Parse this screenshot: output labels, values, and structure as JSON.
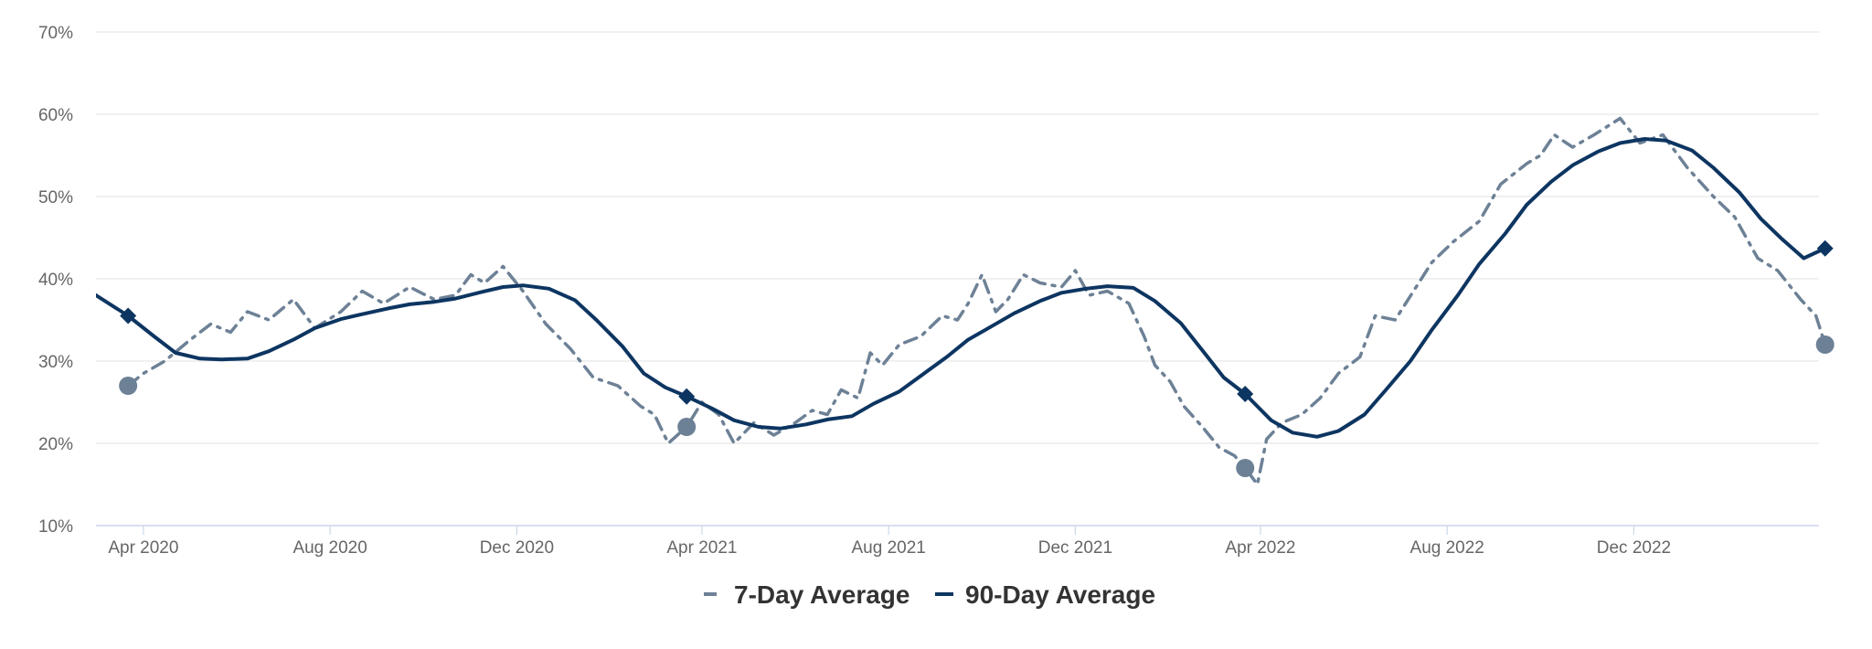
{
  "chart_data": {
    "type": "line",
    "x_axis": {
      "type": "date",
      "min": "2020-03-01",
      "max": "2023-04-01",
      "ticks": [
        {
          "date": "2020-04-01",
          "label": "Apr 2020"
        },
        {
          "date": "2020-08-01",
          "label": "Aug 2020"
        },
        {
          "date": "2020-12-01",
          "label": "Dec 2020"
        },
        {
          "date": "2021-04-01",
          "label": "Apr 2021"
        },
        {
          "date": "2021-08-01",
          "label": "Aug 2021"
        },
        {
          "date": "2021-12-01",
          "label": "Dec 2021"
        },
        {
          "date": "2022-04-01",
          "label": "Apr 2022"
        },
        {
          "date": "2022-08-01",
          "label": "Aug 2022"
        },
        {
          "date": "2022-12-01",
          "label": "Dec 2022"
        }
      ]
    },
    "y_axis": {
      "min": 10,
      "max": 70,
      "ticks": [
        {
          "value": 10,
          "label": "10%"
        },
        {
          "value": 20,
          "label": "20%"
        },
        {
          "value": 30,
          "label": "30%"
        },
        {
          "value": 40,
          "label": "40%"
        },
        {
          "value": 50,
          "label": "50%"
        },
        {
          "value": 60,
          "label": "60%"
        },
        {
          "value": 70,
          "label": "70%"
        }
      ]
    },
    "grid": true,
    "legend": {
      "position": "bottom-center"
    },
    "series": [
      {
        "name": "7-Day Average",
        "color": "#6d8196",
        "style": "dashed",
        "marker": "circle",
        "points": [
          {
            "x": "2020-03-22",
            "y": 27.0,
            "marker": true
          },
          {
            "x": "2020-04-01",
            "y": 28.5
          },
          {
            "x": "2020-04-15",
            "y": 30.0
          },
          {
            "x": "2020-05-01",
            "y": 32.5
          },
          {
            "x": "2020-05-15",
            "y": 34.5
          },
          {
            "x": "2020-05-28",
            "y": 33.5
          },
          {
            "x": "2020-06-08",
            "y": 36.0
          },
          {
            "x": "2020-06-22",
            "y": 35.0
          },
          {
            "x": "2020-07-08",
            "y": 37.5
          },
          {
            "x": "2020-07-22",
            "y": 34.0
          },
          {
            "x": "2020-08-08",
            "y": 36.0
          },
          {
            "x": "2020-08-22",
            "y": 38.5
          },
          {
            "x": "2020-09-05",
            "y": 37.0
          },
          {
            "x": "2020-09-22",
            "y": 39.0
          },
          {
            "x": "2020-10-08",
            "y": 37.5
          },
          {
            "x": "2020-10-22",
            "y": 38.0
          },
          {
            "x": "2020-11-01",
            "y": 40.5
          },
          {
            "x": "2020-11-10",
            "y": 39.5
          },
          {
            "x": "2020-11-22",
            "y": 41.5
          },
          {
            "x": "2020-12-05",
            "y": 38.5
          },
          {
            "x": "2020-12-20",
            "y": 34.5
          },
          {
            "x": "2021-01-05",
            "y": 31.5
          },
          {
            "x": "2021-01-20",
            "y": 28.0
          },
          {
            "x": "2021-02-05",
            "y": 27.0
          },
          {
            "x": "2021-02-20",
            "y": 24.5
          },
          {
            "x": "2021-03-01",
            "y": 23.5
          },
          {
            "x": "2021-03-10",
            "y": 20.0
          },
          {
            "x": "2021-03-22",
            "y": 22.0,
            "marker": true
          },
          {
            "x": "2021-04-01",
            "y": 25.0
          },
          {
            "x": "2021-04-12",
            "y": 23.5
          },
          {
            "x": "2021-04-22",
            "y": 20.0
          },
          {
            "x": "2021-05-05",
            "y": 22.5
          },
          {
            "x": "2021-05-18",
            "y": 21.0
          },
          {
            "x": "2021-06-01",
            "y": 22.5
          },
          {
            "x": "2021-06-12",
            "y": 24.0
          },
          {
            "x": "2021-06-22",
            "y": 23.5
          },
          {
            "x": "2021-07-01",
            "y": 26.5
          },
          {
            "x": "2021-07-12",
            "y": 25.5
          },
          {
            "x": "2021-07-20",
            "y": 31.0
          },
          {
            "x": "2021-07-28",
            "y": 29.5
          },
          {
            "x": "2021-08-08",
            "y": 32.0
          },
          {
            "x": "2021-08-22",
            "y": 33.0
          },
          {
            "x": "2021-09-05",
            "y": 35.5
          },
          {
            "x": "2021-09-15",
            "y": 35.0
          },
          {
            "x": "2021-09-22",
            "y": 37.0
          },
          {
            "x": "2021-10-01",
            "y": 40.5
          },
          {
            "x": "2021-10-10",
            "y": 36.0
          },
          {
            "x": "2021-10-18",
            "y": 37.5
          },
          {
            "x": "2021-10-28",
            "y": 40.5
          },
          {
            "x": "2021-11-08",
            "y": 39.5
          },
          {
            "x": "2021-11-22",
            "y": 39.0
          },
          {
            "x": "2021-12-01",
            "y": 41.0
          },
          {
            "x": "2021-12-10",
            "y": 38.0
          },
          {
            "x": "2021-12-22",
            "y": 38.5
          },
          {
            "x": "2022-01-05",
            "y": 37.0
          },
          {
            "x": "2022-01-15",
            "y": 33.0
          },
          {
            "x": "2022-01-22",
            "y": 29.5
          },
          {
            "x": "2022-02-01",
            "y": 27.5
          },
          {
            "x": "2022-02-10",
            "y": 24.5
          },
          {
            "x": "2022-02-22",
            "y": 22.0
          },
          {
            "x": "2022-03-05",
            "y": 19.5
          },
          {
            "x": "2022-03-15",
            "y": 18.5
          },
          {
            "x": "2022-03-22",
            "y": 17.0,
            "marker": true
          },
          {
            "x": "2022-03-30",
            "y": 15.0
          },
          {
            "x": "2022-04-05",
            "y": 20.5
          },
          {
            "x": "2022-04-15",
            "y": 22.5
          },
          {
            "x": "2022-04-28",
            "y": 23.5
          },
          {
            "x": "2022-05-10",
            "y": 25.5
          },
          {
            "x": "2022-05-22",
            "y": 28.5
          },
          {
            "x": "2022-06-05",
            "y": 30.5
          },
          {
            "x": "2022-06-15",
            "y": 35.5
          },
          {
            "x": "2022-06-28",
            "y": 35.0
          },
          {
            "x": "2022-07-10",
            "y": 38.5
          },
          {
            "x": "2022-07-22",
            "y": 42.0
          },
          {
            "x": "2022-08-05",
            "y": 44.5
          },
          {
            "x": "2022-08-22",
            "y": 47.0
          },
          {
            "x": "2022-09-05",
            "y": 51.5
          },
          {
            "x": "2022-09-22",
            "y": 54.0
          },
          {
            "x": "2022-10-01",
            "y": 55.0
          },
          {
            "x": "2022-10-10",
            "y": 57.5
          },
          {
            "x": "2022-10-22",
            "y": 56.0
          },
          {
            "x": "2022-11-05",
            "y": 57.5
          },
          {
            "x": "2022-11-22",
            "y": 59.5
          },
          {
            "x": "2022-12-05",
            "y": 56.5
          },
          {
            "x": "2022-12-20",
            "y": 57.5
          },
          {
            "x": "2023-01-05",
            "y": 53.5
          },
          {
            "x": "2023-01-22",
            "y": 50.0
          },
          {
            "x": "2023-02-05",
            "y": 47.5
          },
          {
            "x": "2023-02-20",
            "y": 42.5
          },
          {
            "x": "2023-03-05",
            "y": 41.0
          },
          {
            "x": "2023-03-20",
            "y": 37.5
          },
          {
            "x": "2023-03-30",
            "y": 35.5
          },
          {
            "x": "2023-04-05",
            "y": 32.0,
            "marker": true
          }
        ]
      },
      {
        "name": "90-Day Average",
        "color": "#0d3561",
        "style": "solid",
        "marker": "diamond",
        "points": [
          {
            "x": "2020-03-01",
            "y": 38.0
          },
          {
            "x": "2020-03-22",
            "y": 35.5,
            "marker": true
          },
          {
            "x": "2020-04-08",
            "y": 33.0
          },
          {
            "x": "2020-04-22",
            "y": 31.0
          },
          {
            "x": "2020-05-08",
            "y": 30.3
          },
          {
            "x": "2020-05-22",
            "y": 30.2
          },
          {
            "x": "2020-06-08",
            "y": 30.3
          },
          {
            "x": "2020-06-22",
            "y": 31.2
          },
          {
            "x": "2020-07-08",
            "y": 32.6
          },
          {
            "x": "2020-07-22",
            "y": 34.0
          },
          {
            "x": "2020-08-08",
            "y": 35.1
          },
          {
            "x": "2020-08-22",
            "y": 35.7
          },
          {
            "x": "2020-09-08",
            "y": 36.4
          },
          {
            "x": "2020-09-22",
            "y": 36.9
          },
          {
            "x": "2020-10-08",
            "y": 37.2
          },
          {
            "x": "2020-10-22",
            "y": 37.6
          },
          {
            "x": "2020-11-08",
            "y": 38.4
          },
          {
            "x": "2020-11-22",
            "y": 39.0
          },
          {
            "x": "2020-12-05",
            "y": 39.2
          },
          {
            "x": "2020-12-22",
            "y": 38.8
          },
          {
            "x": "2021-01-08",
            "y": 37.4
          },
          {
            "x": "2021-01-22",
            "y": 35.0
          },
          {
            "x": "2021-02-08",
            "y": 31.8
          },
          {
            "x": "2021-02-22",
            "y": 28.5
          },
          {
            "x": "2021-03-08",
            "y": 26.8
          },
          {
            "x": "2021-03-22",
            "y": 25.7,
            "marker": true
          },
          {
            "x": "2021-04-08",
            "y": 24.2
          },
          {
            "x": "2021-04-22",
            "y": 22.8
          },
          {
            "x": "2021-05-08",
            "y": 22.0
          },
          {
            "x": "2021-05-22",
            "y": 21.8
          },
          {
            "x": "2021-06-08",
            "y": 22.3
          },
          {
            "x": "2021-06-22",
            "y": 22.9
          },
          {
            "x": "2021-07-08",
            "y": 23.3
          },
          {
            "x": "2021-07-22",
            "y": 24.8
          },
          {
            "x": "2021-08-08",
            "y": 26.3
          },
          {
            "x": "2021-08-22",
            "y": 28.2
          },
          {
            "x": "2021-09-08",
            "y": 30.5
          },
          {
            "x": "2021-09-22",
            "y": 32.6
          },
          {
            "x": "2021-10-08",
            "y": 34.3
          },
          {
            "x": "2021-10-22",
            "y": 35.8
          },
          {
            "x": "2021-11-08",
            "y": 37.3
          },
          {
            "x": "2021-11-22",
            "y": 38.3
          },
          {
            "x": "2021-12-08",
            "y": 38.8
          },
          {
            "x": "2021-12-22",
            "y": 39.1
          },
          {
            "x": "2022-01-08",
            "y": 38.9
          },
          {
            "x": "2022-01-22",
            "y": 37.3
          },
          {
            "x": "2022-02-08",
            "y": 34.6
          },
          {
            "x": "2022-02-22",
            "y": 31.3
          },
          {
            "x": "2022-03-08",
            "y": 28.0
          },
          {
            "x": "2022-03-22",
            "y": 26.0,
            "marker": true
          },
          {
            "x": "2022-04-08",
            "y": 22.8
          },
          {
            "x": "2022-04-22",
            "y": 21.3
          },
          {
            "x": "2022-05-08",
            "y": 20.8
          },
          {
            "x": "2022-05-22",
            "y": 21.5
          },
          {
            "x": "2022-06-08",
            "y": 23.5
          },
          {
            "x": "2022-06-22",
            "y": 26.5
          },
          {
            "x": "2022-07-08",
            "y": 30.0
          },
          {
            "x": "2022-07-22",
            "y": 33.8
          },
          {
            "x": "2022-08-08",
            "y": 38.0
          },
          {
            "x": "2022-08-22",
            "y": 41.8
          },
          {
            "x": "2022-09-08",
            "y": 45.5
          },
          {
            "x": "2022-09-22",
            "y": 49.0
          },
          {
            "x": "2022-10-08",
            "y": 51.8
          },
          {
            "x": "2022-10-22",
            "y": 53.8
          },
          {
            "x": "2022-11-08",
            "y": 55.5
          },
          {
            "x": "2022-11-22",
            "y": 56.5
          },
          {
            "x": "2022-12-08",
            "y": 57.0
          },
          {
            "x": "2022-12-22",
            "y": 56.8
          },
          {
            "x": "2023-01-08",
            "y": 55.6
          },
          {
            "x": "2023-01-22",
            "y": 53.5
          },
          {
            "x": "2023-02-08",
            "y": 50.5
          },
          {
            "x": "2023-02-22",
            "y": 47.3
          },
          {
            "x": "2023-03-08",
            "y": 44.8
          },
          {
            "x": "2023-03-22",
            "y": 42.5
          },
          {
            "x": "2023-04-05",
            "y": 43.7,
            "marker": true
          }
        ]
      }
    ]
  }
}
